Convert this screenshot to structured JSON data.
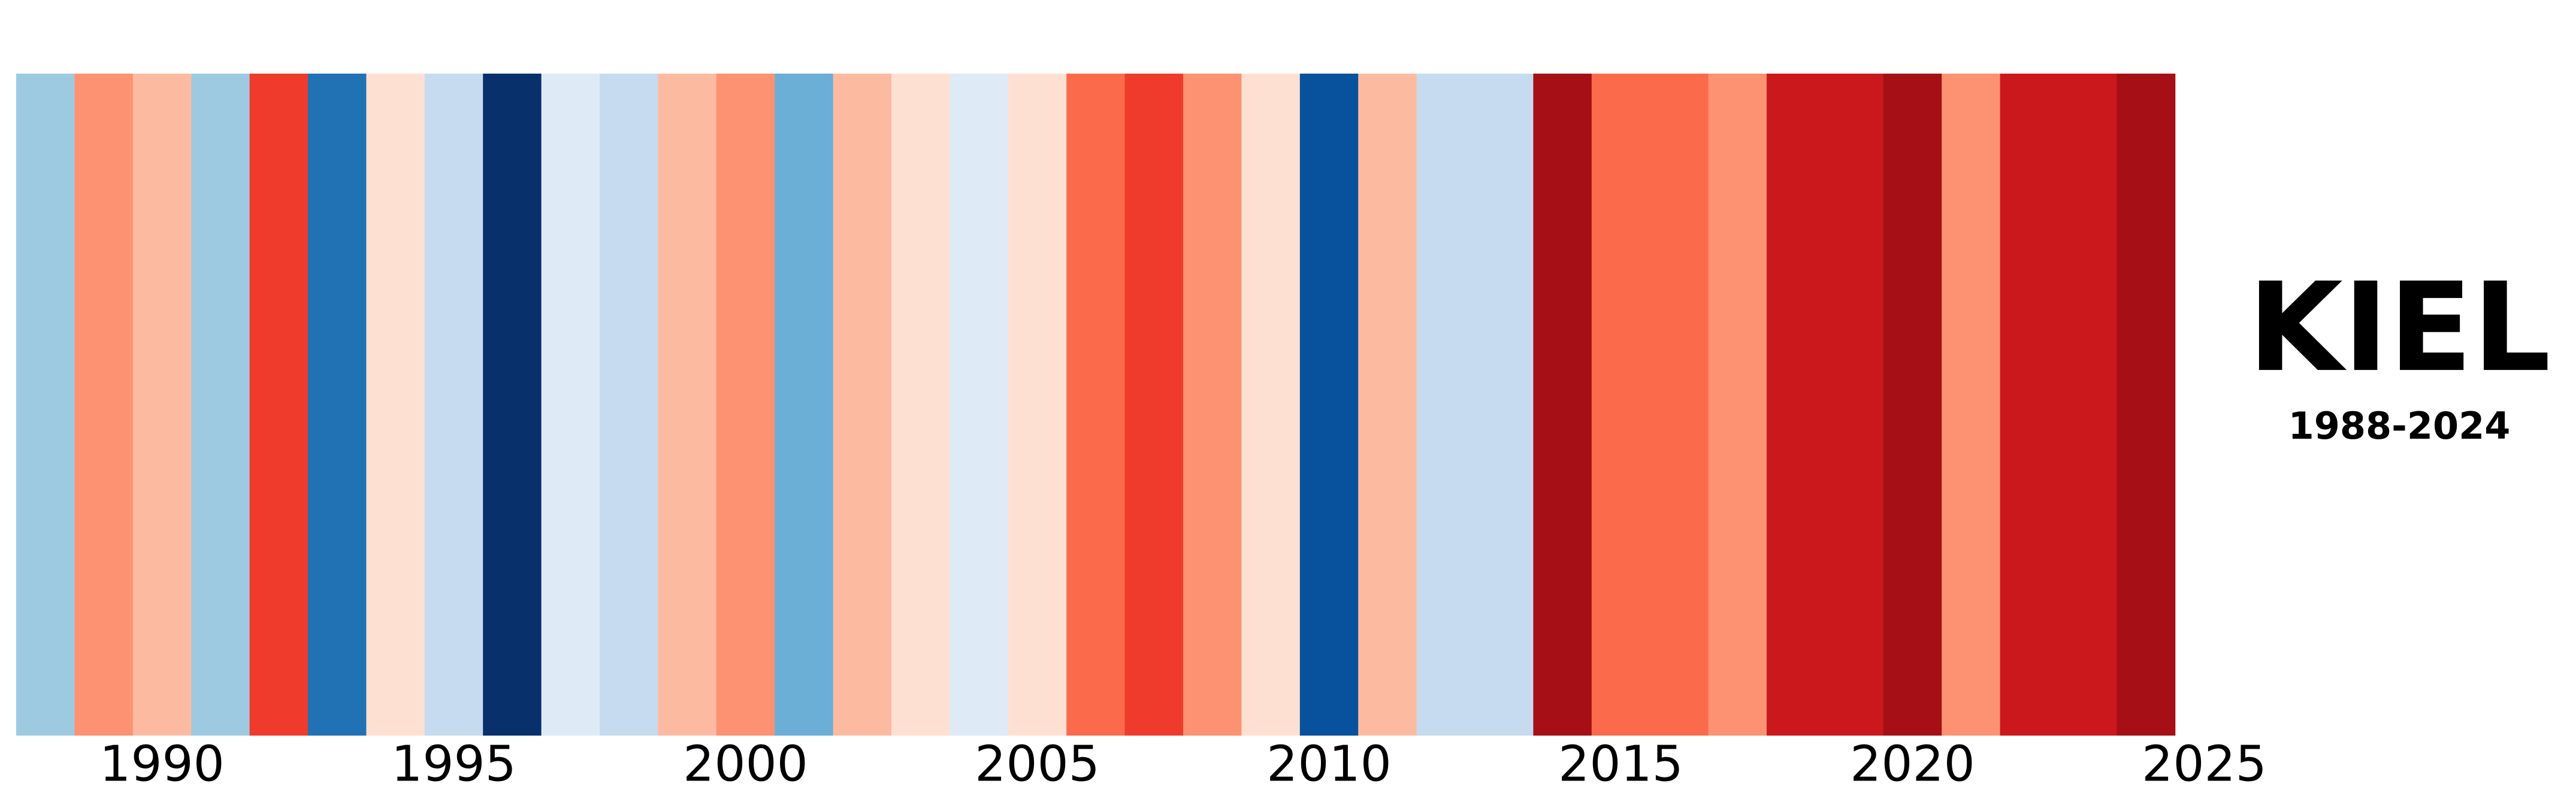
{
  "chart_data": {
    "type": "stripes",
    "title": "KIEL",
    "subtitle": "1988-2024",
    "x": [
      1988,
      1989,
      1990,
      1991,
      1992,
      1993,
      1994,
      1995,
      1996,
      1997,
      1998,
      1999,
      2000,
      2001,
      2002,
      2003,
      2004,
      2005,
      2006,
      2007,
      2008,
      2009,
      2010,
      2011,
      2012,
      2013,
      2014,
      2015,
      2016,
      2017,
      2018,
      2019,
      2020,
      2021,
      2022,
      2023,
      2024
    ],
    "values": [
      -0.45,
      0.35,
      0.2,
      -0.45,
      0.65,
      -0.9,
      0.05,
      -0.3,
      -1.5,
      -0.15,
      -0.3,
      0.2,
      0.35,
      -0.6,
      0.2,
      0.05,
      -0.15,
      0.05,
      0.5,
      0.65,
      0.35,
      0.05,
      -1.2,
      0.2,
      -0.3,
      -0.3,
      1.0,
      0.5,
      0.5,
      0.35,
      0.8,
      0.8,
      1.0,
      0.35,
      0.8,
      0.8,
      1.0
    ],
    "colors": [
      "#9ecae1",
      "#fc9272",
      "#fcbba1",
      "#9ecae1",
      "#ef3b2c",
      "#2171b5",
      "#fee0d2",
      "#c6dbef",
      "#08306b",
      "#deebf7",
      "#c6dbef",
      "#fcbba1",
      "#fc9272",
      "#6baed6",
      "#fcbba1",
      "#fee0d2",
      "#deebf7",
      "#fee0d2",
      "#fb6a4a",
      "#ef3b2c",
      "#fc9272",
      "#fee0d2",
      "#08519c",
      "#fcbba1",
      "#c6dbef",
      "#c6dbef",
      "#a50f15",
      "#fb6a4a",
      "#fb6a4a",
      "#fc9272",
      "#cb181d",
      "#cb181d",
      "#a50f15",
      "#fc9272",
      "#cb181d",
      "#cb181d",
      "#a50f15"
    ],
    "xlim": [
      1987.5,
      2025.5
    ],
    "xticks": [
      1990,
      1995,
      2000,
      2005,
      2010,
      2015,
      2020,
      2025
    ]
  }
}
